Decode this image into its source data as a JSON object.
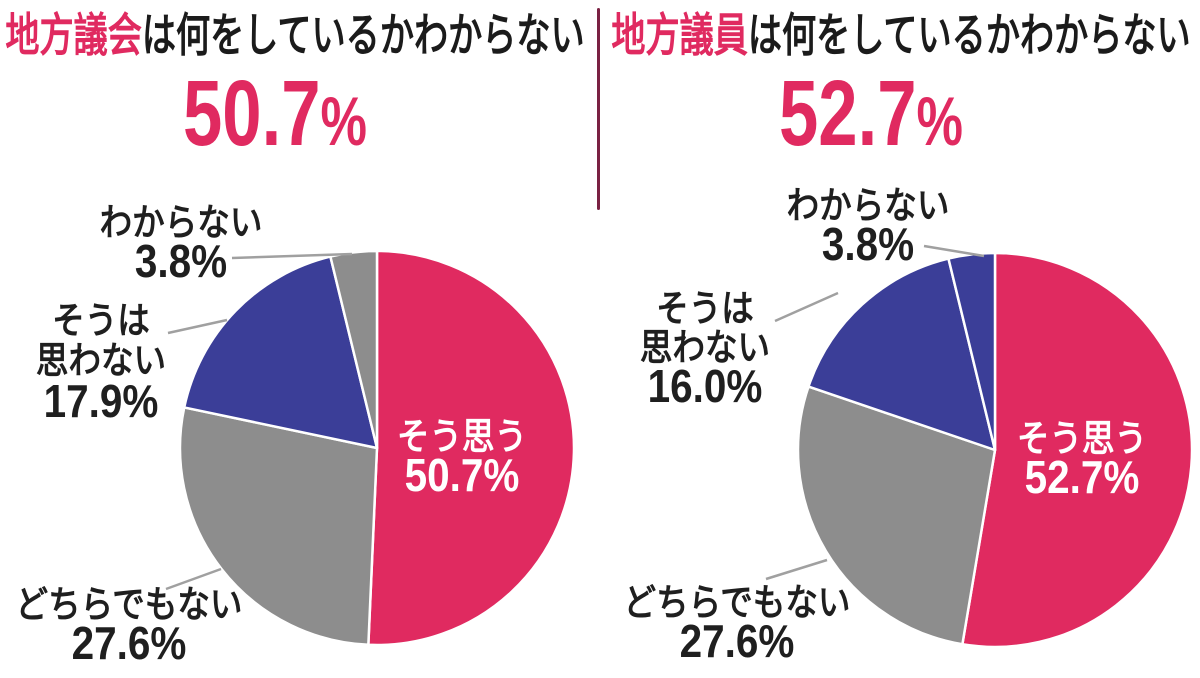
{
  "colors": {
    "pink": "#e02a60",
    "indigo": "#3b3e98",
    "gray": "#8d8d8d",
    "divider": "#7a2143",
    "leader": "#a0a0a0",
    "text": "#1b1b1b",
    "inside_text": "#ffffff"
  },
  "panels": [
    {
      "title": {
        "highlight": "地方議会",
        "rest": "は何をしているかわからない"
      },
      "headline": {
        "value": "50.7",
        "unit": "%"
      },
      "labels": {
        "unknown": {
          "line1": "わからない",
          "line2": "3.8%"
        },
        "disagree": {
          "line1": "そうは",
          "line2": "思わない",
          "line3": "17.9%"
        },
        "neither": {
          "line1": "どちらでもない",
          "line2": "27.6%"
        },
        "agree": {
          "line1": "そう思う",
          "line2": "50.7%"
        }
      }
    },
    {
      "title": {
        "highlight": "地方議員",
        "rest": "は何をしているかわからない"
      },
      "headline": {
        "value": "52.7",
        "unit": "%"
      },
      "labels": {
        "unknown": {
          "line1": "わからない",
          "line2": "3.8%"
        },
        "disagree": {
          "line1": "そうは",
          "line2": "思わない",
          "line3": "16.0%"
        },
        "neither": {
          "line1": "どちらでもない",
          "line2": "27.6%"
        },
        "agree": {
          "line1": "そう思う",
          "line2": "52.7%"
        }
      }
    }
  ],
  "chart_data": [
    {
      "type": "pie",
      "title": "地方議会は何をしているかわからない",
      "headline_value": "50.7%",
      "labels": [
        "そう思う",
        "どちらでもない",
        "そうは思わない",
        "わからない"
      ],
      "keys": [
        "agree",
        "neither",
        "disagree",
        "unknown"
      ],
      "values": [
        50.7,
        27.6,
        17.9,
        3.8
      ],
      "colors": [
        "#e02a60",
        "#8d8d8d",
        "#3b3e98",
        "#8d8d8d"
      ],
      "start_angle_deg": 0,
      "direction": "clockwise",
      "legend": "none"
    },
    {
      "type": "pie",
      "title": "地方議員は何をしているかわからない",
      "headline_value": "52.7%",
      "labels": [
        "そう思う",
        "どちらでもない",
        "そうは思わない",
        "わからない"
      ],
      "keys": [
        "agree",
        "neither",
        "disagree",
        "unknown"
      ],
      "values": [
        52.7,
        27.6,
        16.0,
        3.8
      ],
      "colors": [
        "#e02a60",
        "#8d8d8d",
        "#3b3e98",
        "#3b3e98"
      ],
      "start_angle_deg": 0,
      "direction": "clockwise",
      "legend": "none"
    }
  ]
}
